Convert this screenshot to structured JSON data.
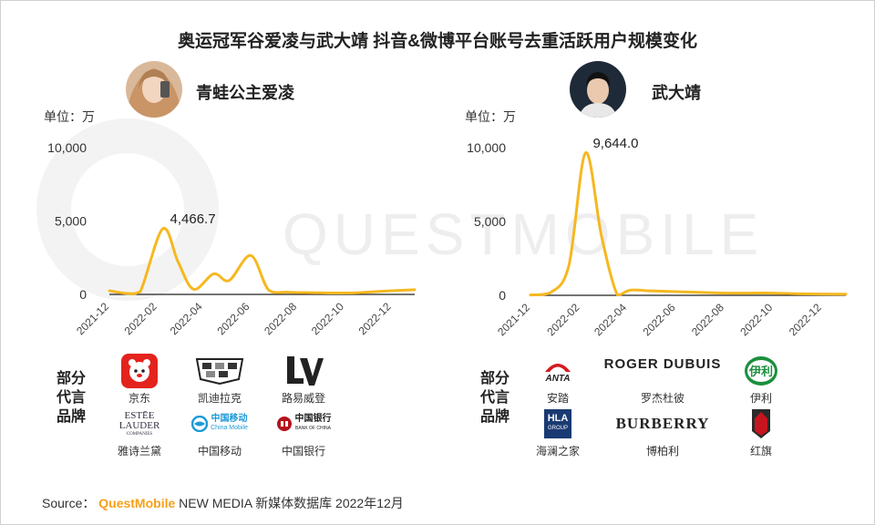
{
  "title": "奥运冠军谷爱凌与武大靖 抖音&微博平台账号去重活跃用户规模变化",
  "watermark": "QUESTMOBILE",
  "colors": {
    "line": "#f6b820",
    "axis": "#222222",
    "accent": "#f5a01a"
  },
  "left_panel": {
    "athlete": "青蛙公主爱凌",
    "unit_label": "单位：万",
    "endorse_label": [
      "部分",
      "代言",
      "品牌"
    ],
    "brands": [
      {
        "name": "京东",
        "icon": "jd-dog-icon"
      },
      {
        "name": "凯迪拉克",
        "icon": "cadillac-crest-icon"
      },
      {
        "name": "路易威登",
        "icon": "lv-monogram-icon"
      },
      {
        "name": "雅诗兰黛",
        "icon": "estee-lauder-icon",
        "logo_text": [
          "ESTĒE",
          "LAUDER",
          "COMPANIES"
        ]
      },
      {
        "name": "中国移动",
        "icon": "china-mobile-icon",
        "logo_text": [
          "中国移动",
          "China Mobile"
        ]
      },
      {
        "name": "中国银行",
        "icon": "bank-of-china-icon",
        "logo_text": [
          "中国银行",
          "BANK OF CHINA"
        ]
      }
    ]
  },
  "right_panel": {
    "athlete": "武大靖",
    "unit_label": "单位：万",
    "endorse_label": [
      "部分",
      "代言",
      "品牌"
    ],
    "brands": [
      {
        "name": "安踏",
        "icon": "anta-icon",
        "logo_text": [
          "ANTA"
        ]
      },
      {
        "name": "罗杰杜彼",
        "icon": "roger-dubuis-icon",
        "logo_text": [
          "ROGER DUBUIS"
        ]
      },
      {
        "name": "伊利",
        "icon": "yili-icon",
        "logo_text": [
          "伊利"
        ]
      },
      {
        "name": "海澜之家",
        "icon": "hla-icon",
        "logo_text": [
          "HLA",
          "GROUP"
        ]
      },
      {
        "name": "博柏利",
        "icon": "burberry-icon",
        "logo_text": [
          "BURBERRY"
        ]
      },
      {
        "name": "红旗",
        "icon": "hongqi-icon"
      }
    ]
  },
  "chart_data": [
    {
      "type": "line",
      "ylim": [
        0,
        10000
      ],
      "yticks": [
        "10,000",
        "5,000",
        "0"
      ],
      "ytick_values": [
        10000,
        5000,
        0
      ],
      "xticks": [
        "2021-12",
        "2022-02",
        "2022-04",
        "2022-06",
        "2022-08",
        "2022-10",
        "2022-12"
      ],
      "x_start": "2021-12-01",
      "x_end": "2022-12-31",
      "series": [
        {
          "points": [
            [
              "2021-12-01",
              250
            ],
            [
              "2021-12-25",
              60
            ],
            [
              "2022-01-10",
              200
            ],
            [
              "2022-02-08",
              4466.7
            ],
            [
              "2022-02-28",
              2200
            ],
            [
              "2022-03-20",
              350
            ],
            [
              "2022-04-15",
              1400
            ],
            [
              "2022-05-05",
              950
            ],
            [
              "2022-06-02",
              2650
            ],
            [
              "2022-06-25",
              300
            ],
            [
              "2022-07-20",
              150
            ],
            [
              "2022-08-20",
              120
            ],
            [
              "2022-09-20",
              90
            ],
            [
              "2022-10-20",
              120
            ],
            [
              "2022-11-20",
              220
            ],
            [
              "2022-12-31",
              320
            ]
          ]
        }
      ],
      "peak": {
        "date": "2022-02-08",
        "value": 4466.7,
        "label": "4,466.7"
      }
    },
    {
      "type": "line",
      "ylim": [
        0,
        10000
      ],
      "yticks": [
        "10,000",
        "5,000",
        "0"
      ],
      "ytick_values": [
        10000,
        5000,
        0
      ],
      "xticks": [
        "2021-12",
        "2022-02",
        "2022-04",
        "2022-06",
        "2022-08",
        "2022-10",
        "2022-12"
      ],
      "x_start": "2021-12-01",
      "x_end": "2022-12-31",
      "series": [
        {
          "points": [
            [
              "2021-12-01",
              20
            ],
            [
              "2021-12-25",
              150
            ],
            [
              "2022-01-18",
              2000
            ],
            [
              "2022-02-08",
              9644.0
            ],
            [
              "2022-02-28",
              4000
            ],
            [
              "2022-03-20",
              20
            ],
            [
              "2022-04-05",
              350
            ],
            [
              "2022-05-01",
              300
            ],
            [
              "2022-06-01",
              250
            ],
            [
              "2022-07-01",
              200
            ],
            [
              "2022-08-01",
              150
            ],
            [
              "2022-09-01",
              150
            ],
            [
              "2022-10-01",
              150
            ],
            [
              "2022-11-01",
              100
            ],
            [
              "2022-12-31",
              80
            ]
          ]
        }
      ],
      "peak": {
        "date": "2022-02-08",
        "value": 9644.0,
        "label": "9,644.0"
      }
    }
  ],
  "source": {
    "prefix": "Source：",
    "brand": "QuestMobile",
    "rest": "NEW MEDIA 新媒体数据库 2022年12月"
  }
}
